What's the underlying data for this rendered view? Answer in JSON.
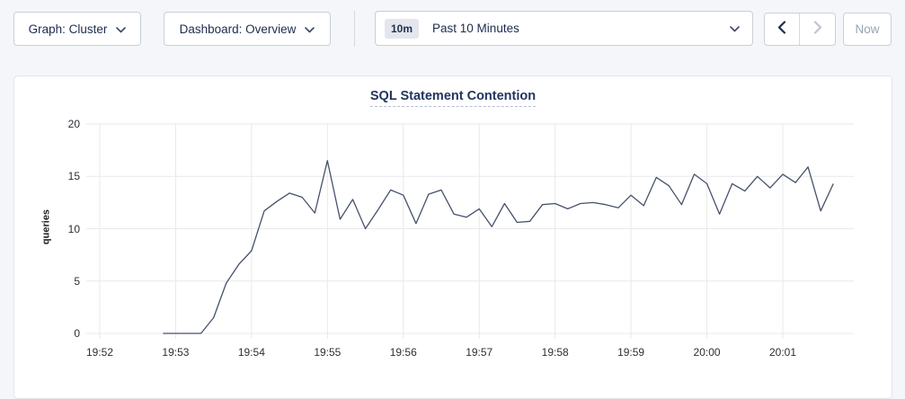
{
  "toolbar": {
    "graph_selector": {
      "label": "Graph: Cluster"
    },
    "dashboard_selector": {
      "label": "Dashboard: Overview"
    },
    "time_range": {
      "badge": "10m",
      "label": "Past 10 Minutes"
    },
    "now_button": {
      "label": "Now"
    }
  },
  "chart_data": {
    "type": "line",
    "title": "SQL Statement Contention",
    "xlabel": "",
    "ylabel": "queries",
    "ylim": [
      0,
      20
    ],
    "y_ticks": [
      0,
      5,
      10,
      15,
      20
    ],
    "x_tick_labels": [
      "19:52",
      "19:53",
      "19:54",
      "19:55",
      "19:56",
      "19:57",
      "19:58",
      "19:59",
      "20:00",
      "20:01"
    ],
    "x_start": "19:52:50",
    "x_interval_seconds": 10,
    "grid": true,
    "legend": "none",
    "line_color": "#46526b",
    "grid_color": "#e9e9eb",
    "series": [
      {
        "name": "queries",
        "values": [
          0,
          0,
          0,
          0,
          1.5,
          4.8,
          6.6,
          7.9,
          11.7,
          12.6,
          13.4,
          13.0,
          11.5,
          16.5,
          10.9,
          12.8,
          10.0,
          11.8,
          13.7,
          13.2,
          10.5,
          13.3,
          13.7,
          11.4,
          11.1,
          11.9,
          10.2,
          12.4,
          10.6,
          10.7,
          12.3,
          12.4,
          11.9,
          12.4,
          12.5,
          12.3,
          12.0,
          13.2,
          12.2,
          14.9,
          14.1,
          12.3,
          15.2,
          14.3,
          11.4,
          14.3,
          13.6,
          15.0,
          13.9,
          15.2,
          14.4,
          15.9,
          11.7,
          14.3
        ]
      }
    ]
  }
}
